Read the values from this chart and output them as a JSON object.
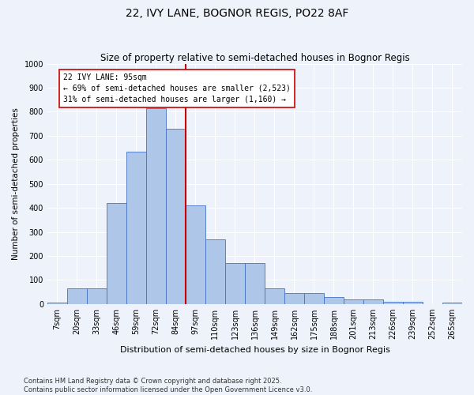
{
  "title": "22, IVY LANE, BOGNOR REGIS, PO22 8AF",
  "subtitle": "Size of property relative to semi-detached houses in Bognor Regis",
  "xlabel": "Distribution of semi-detached houses by size in Bognor Regis",
  "ylabel": "Number of semi-detached properties",
  "footnote": "Contains HM Land Registry data © Crown copyright and database right 2025.\nContains public sector information licensed under the Open Government Licence v3.0.",
  "bin_labels": [
    "7sqm",
    "20sqm",
    "33sqm",
    "46sqm",
    "59sqm",
    "72sqm",
    "84sqm",
    "97sqm",
    "110sqm",
    "123sqm",
    "136sqm",
    "149sqm",
    "162sqm",
    "175sqm",
    "188sqm",
    "201sqm",
    "213sqm",
    "226sqm",
    "239sqm",
    "252sqm",
    "265sqm"
  ],
  "bar_heights": [
    5,
    65,
    65,
    420,
    635,
    815,
    730,
    410,
    270,
    170,
    170,
    65,
    45,
    45,
    30,
    18,
    18,
    8,
    10,
    0,
    5
  ],
  "bar_color": "#aec6e8",
  "bar_edge_color": "#4472c4",
  "annotation_text": "22 IVY LANE: 95sqm\n← 69% of semi-detached houses are smaller (2,523)\n31% of semi-detached houses are larger (1,160) →",
  "vline_x": 6.5,
  "ylim": [
    0,
    1000
  ],
  "yticks": [
    0,
    100,
    200,
    300,
    400,
    500,
    600,
    700,
    800,
    900,
    1000
  ],
  "background_color": "#eef2fb",
  "grid_color": "#ffffff",
  "annotation_box_color": "#ffffff",
  "annotation_box_edge": "#cc0000",
  "vline_color": "#cc0000",
  "title_fontsize": 10,
  "subtitle_fontsize": 8.5,
  "xlabel_fontsize": 8,
  "ylabel_fontsize": 7.5,
  "tick_fontsize": 7,
  "footnote_fontsize": 6,
  "annotation_fontsize": 7
}
